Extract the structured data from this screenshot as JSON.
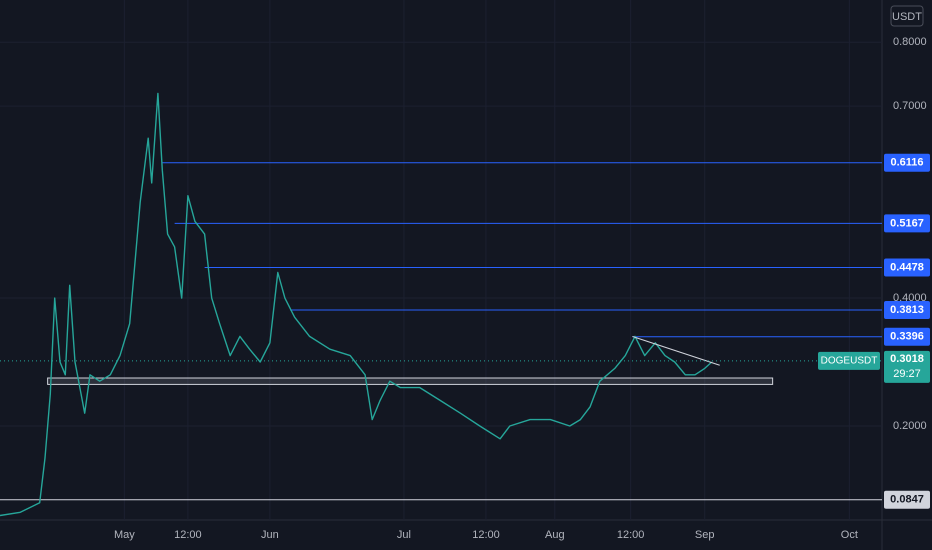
{
  "chart_data": {
    "type": "line",
    "unit": "USDT",
    "series": [
      {
        "name": "DOGEUSDT",
        "color": "#26a69a",
        "x": [
          0,
          2.3,
          4.5,
          5.1,
          5.7,
          6.2,
          6.8,
          7.4,
          7.9,
          8.5,
          9.6,
          10.2,
          11.3,
          12.5,
          13.6,
          14.7,
          15.9,
          16.8,
          17.2,
          17.9,
          18.4,
          19,
          19.8,
          20.6,
          21.3,
          22.1,
          23.2,
          24,
          24.9,
          26.1,
          27.2,
          28.3,
          29.5,
          30.6,
          31.5,
          32.3,
          33.4,
          35.1,
          37.4,
          39.7,
          41.4,
          42.2,
          43.1,
          44.2,
          45.4,
          47.6,
          49.9,
          52.2,
          54.4,
          56.7,
          57.8,
          60.1,
          62.4,
          64.6,
          65.8,
          66.9,
          68,
          69.7,
          70.9,
          72,
          73.1,
          74.3,
          75.4,
          76.5,
          77.7,
          78.8,
          79.9,
          80.7
        ],
        "values": [
          0.06,
          0.065,
          0.08,
          0.15,
          0.25,
          0.4,
          0.3,
          0.28,
          0.42,
          0.3,
          0.22,
          0.28,
          0.27,
          0.28,
          0.31,
          0.36,
          0.55,
          0.65,
          0.58,
          0.72,
          0.6,
          0.5,
          0.48,
          0.4,
          0.56,
          0.52,
          0.5,
          0.4,
          0.36,
          0.31,
          0.34,
          0.32,
          0.3,
          0.33,
          0.44,
          0.4,
          0.37,
          0.34,
          0.32,
          0.31,
          0.28,
          0.21,
          0.24,
          0.27,
          0.26,
          0.26,
          0.24,
          0.22,
          0.2,
          0.18,
          0.2,
          0.21,
          0.21,
          0.2,
          0.21,
          0.23,
          0.27,
          0.29,
          0.31,
          0.34,
          0.31,
          0.33,
          0.31,
          0.3,
          0.28,
          0.28,
          0.29,
          0.3
        ]
      }
    ],
    "levels": [
      {
        "value": 0.6116,
        "start": 18.4,
        "color": "#2962ff"
      },
      {
        "value": 0.5167,
        "start": 19.8,
        "color": "#2962ff"
      },
      {
        "value": 0.4478,
        "start": 23.2,
        "color": "#2962ff"
      },
      {
        "value": 0.3813,
        "start": 32.9,
        "color": "#2962ff"
      },
      {
        "value": 0.3396,
        "start": 71.7,
        "color": "#2962ff"
      },
      {
        "value": 0.0847,
        "start": 0,
        "color": "#d1d4dc"
      }
    ],
    "zone": {
      "low": 0.265,
      "high": 0.275,
      "start": 5.4,
      "end": 87.6
    },
    "trendline": {
      "x": [
        71.7,
        81.6
      ],
      "y": [
        0.34,
        0.295
      ]
    },
    "current": {
      "symbol": "DOGEUSDT",
      "value": 0.3018,
      "countdown": "29:27"
    },
    "xlim": [
      0,
      100
    ],
    "ylim": [
      0.053,
      0.866
    ],
    "xticks": [
      {
        "value": 14.1,
        "label": "May"
      },
      {
        "value": 21.3,
        "label": "12:00"
      },
      {
        "value": 30.6,
        "label": "Jun"
      },
      {
        "value": 45.8,
        "label": "Jul"
      },
      {
        "value": 55.1,
        "label": "12:00"
      },
      {
        "value": 62.9,
        "label": "Aug"
      },
      {
        "value": 71.5,
        "label": "12:00"
      },
      {
        "value": 79.9,
        "label": "Sep"
      },
      {
        "value": 96.3,
        "label": "Oct"
      }
    ],
    "yticks": [
      {
        "value": 0.8,
        "label": "0.8000"
      },
      {
        "value": 0.7,
        "label": "0.7000"
      },
      {
        "value": 0.4,
        "label": "0.4000"
      },
      {
        "value": 0.2,
        "label": "0.2000"
      }
    ],
    "grid": true
  }
}
